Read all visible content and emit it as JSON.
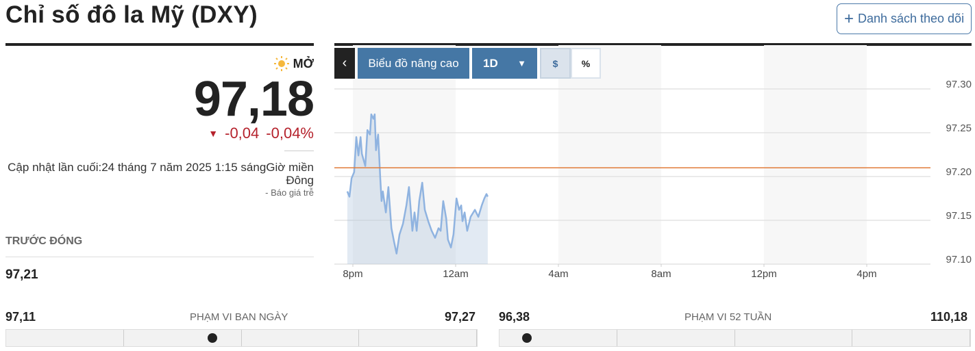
{
  "header": {
    "title": "Chỉ số đô la Mỹ (DXY)",
    "watchlist_label": "Danh sách theo dõi",
    "watchlist_icon": "plus-icon"
  },
  "quote": {
    "status": "MỞ",
    "status_icon": "sun-icon",
    "price": "97,18",
    "change": "-0,04",
    "change_pct": "-0,04%",
    "direction_icon": "triangle-down-icon",
    "updated": "Cập nhật lần cuối:24 tháng 7 năm 2025 1:15 sángGiờ miền Đông",
    "delayed": "-  Báo giá trễ",
    "colors": {
      "down": "#b5222c"
    }
  },
  "previous_close": {
    "label": "TRƯỚC ĐÓNG",
    "value": "97,21"
  },
  "ranges": [
    {
      "title": "PHẠM VI BAN NGÀY",
      "low": "97,11",
      "high": "97,27",
      "low_num": 97.11,
      "high_num": 97.27,
      "current": 97.18
    },
    {
      "title": "PHẠM VI 52 TUẦN",
      "low": "96,38",
      "high": "110,18",
      "low_num": 96.38,
      "high_num": 110.18,
      "current": 97.18
    }
  ],
  "toolbar": {
    "back_icon": "chevron-left-icon",
    "advanced_label": "Biểu đồ nâng cao",
    "period": "1D",
    "period_icon": "caret-down-icon",
    "dollar_label": "$",
    "percent_label": "%",
    "selected": "$"
  },
  "chart_data": {
    "type": "area",
    "x_ticks": [
      "8pm",
      "12am",
      "4am",
      "8am",
      "12pm",
      "4pm"
    ],
    "y_ticks": [
      "97.30",
      "97.25",
      "97.20",
      "97.15",
      "97.10"
    ],
    "ylim": [
      97.1,
      97.3
    ],
    "reference_line": {
      "value": 97.21,
      "color": "#e07b39"
    },
    "line_color": "#8fb3e0",
    "grid": true,
    "x": [
      "19:47",
      "19:52",
      "19:57",
      "20:03",
      "20:08",
      "20:13",
      "20:18",
      "20:21",
      "20:29",
      "20:34",
      "20:40",
      "20:43",
      "20:48",
      "20:51",
      "20:54",
      "20:59",
      "21:04",
      "21:07",
      "21:10",
      "21:17",
      "21:23",
      "21:30",
      "21:36",
      "21:42",
      "21:49",
      "21:57",
      "22:05",
      "22:11",
      "22:19",
      "22:24",
      "22:29",
      "22:35",
      "22:42",
      "22:48",
      "22:56",
      "23:04",
      "23:12",
      "23:20",
      "23:25",
      "23:31",
      "23:38",
      "23:42",
      "23:49",
      "23:55",
      "00:02",
      "00:08",
      "00:13",
      "00:16",
      "00:21",
      "00:27",
      "00:35",
      "00:45",
      "00:53",
      "01:01",
      "01:07",
      "01:12",
      "01:15"
    ],
    "values": [
      97.183,
      97.177,
      97.198,
      97.205,
      97.245,
      97.224,
      97.245,
      97.226,
      97.212,
      97.253,
      97.248,
      97.271,
      97.266,
      97.271,
      97.23,
      97.248,
      97.198,
      97.172,
      97.183,
      97.159,
      97.188,
      97.141,
      97.126,
      97.112,
      97.134,
      97.146,
      97.167,
      97.188,
      97.138,
      97.159,
      97.138,
      97.172,
      97.193,
      97.162,
      97.149,
      97.138,
      97.13,
      97.141,
      97.138,
      97.172,
      97.152,
      97.128,
      97.119,
      97.134,
      97.175,
      97.162,
      97.167,
      97.149,
      97.159,
      97.138,
      97.154,
      97.162,
      97.154,
      97.167,
      97.175,
      97.18,
      97.177
    ]
  }
}
